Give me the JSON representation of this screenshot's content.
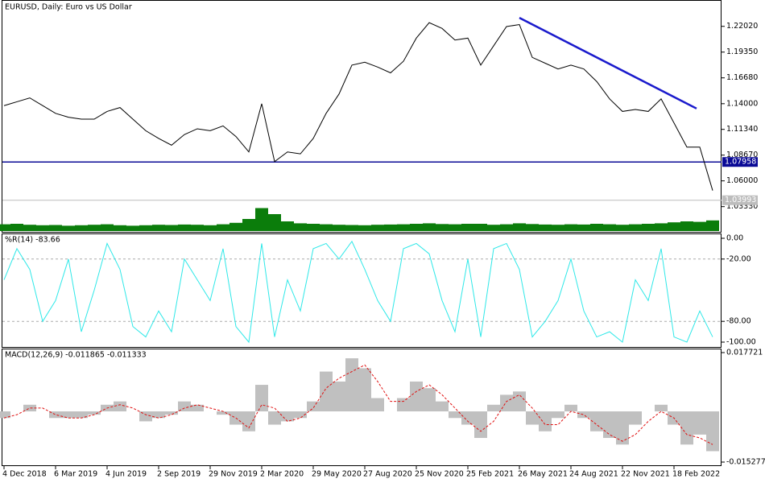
{
  "chart_data": [
    {
      "type": "line",
      "title": "EURUSD, Daily: Euro vs US Dollar",
      "color": "#000000",
      "values": [
        1.138,
        1.142,
        1.146,
        1.138,
        1.13,
        1.126,
        1.124,
        1.124,
        1.132,
        1.136,
        1.124,
        1.112,
        1.104,
        1.097,
        1.108,
        1.114,
        1.112,
        1.117,
        1.106,
        1.09,
        1.14,
        1.08,
        1.09,
        1.088,
        1.104,
        1.13,
        1.15,
        1.18,
        1.183,
        1.178,
        1.172,
        1.184,
        1.208,
        1.224,
        1.218,
        1.206,
        1.208,
        1.18,
        1.2,
        1.22,
        1.222,
        1.188,
        1.182,
        1.176,
        1.18,
        1.176,
        1.163,
        1.145,
        1.132,
        1.134,
        1.132,
        1.145,
        1.12,
        1.095,
        1.095,
        1.05
      ],
      "ylim": [
        1.008,
        1.245
      ],
      "yticks": [
        {
          "value": 1.0333,
          "label": "1.03330"
        },
        {
          "value": 1.06,
          "label": "1.06000"
        },
        {
          "value": 1.0867,
          "label": "1.08670"
        },
        {
          "value": 1.1134,
          "label": "1.11340"
        },
        {
          "value": 1.14,
          "label": "1.14000"
        },
        {
          "value": 1.1668,
          "label": "1.16680"
        },
        {
          "value": 1.1935,
          "label": "1.19350"
        },
        {
          "value": 1.2202,
          "label": "1.22020"
        }
      ],
      "hlines": [
        {
          "value": 1.07958,
          "color": "#0a0a96"
        },
        {
          "value": 1.03993,
          "color": "#bdbdbd"
        }
      ],
      "trendline": {
        "values": [
          1.229,
          1.135
        ],
        "color": "#1a1acc"
      }
    },
    {
      "type": "bar",
      "color": "#0b7d0b",
      "ylim": [
        0,
        100
      ],
      "values": [
        28,
        30,
        26,
        24,
        25,
        22,
        24,
        26,
        28,
        24,
        22,
        24,
        26,
        25,
        27,
        26,
        24,
        28,
        34,
        50,
        95,
        70,
        40,
        32,
        30,
        28,
        26,
        25,
        24,
        26,
        27,
        28,
        30,
        32,
        29,
        28,
        30,
        30,
        26,
        28,
        32,
        29,
        27,
        26,
        28,
        27,
        30,
        28,
        26,
        28,
        30,
        32,
        36,
        40,
        38,
        44
      ]
    },
    {
      "type": "line",
      "title": "%R(14) -83.66",
      "color": "#2ee8e8",
      "ylim": [
        -100,
        0
      ],
      "yticks": [
        {
          "value": 0,
          "label": "0.00"
        },
        {
          "value": -20,
          "label": "-20.00"
        },
        {
          "value": -80,
          "label": "-80.00"
        },
        {
          "value": -100,
          "label": "-100.00"
        }
      ],
      "values": [
        -40,
        -10,
        -30,
        -80,
        -60,
        -20,
        -90,
        -50,
        -5,
        -30,
        -85,
        -95,
        -70,
        -90,
        -20,
        -40,
        -60,
        -10,
        -85,
        -100,
        -5,
        -95,
        -40,
        -70,
        -10,
        -5,
        -20,
        -3,
        -30,
        -60,
        -80,
        -10,
        -5,
        -15,
        -60,
        -90,
        -20,
        -95,
        -10,
        -5,
        -30,
        -95,
        -80,
        -60,
        -20,
        -70,
        -95,
        -90,
        -100,
        -40,
        -60,
        -10,
        -95,
        -100,
        -70,
        -95
      ]
    },
    {
      "type": "macd",
      "title": "MACD(12,26,9) -0.011865 -0.011333",
      "ylim": [
        -0.015277,
        0.017721
      ],
      "yticks": [
        0.017721,
        -0.015277
      ],
      "categories": [
        "4 Dec 2018",
        null,
        null,
        null,
        "6 Mar 2019",
        null,
        null,
        null,
        "4 Jun 2019",
        null,
        null,
        null,
        "2 Sep 2019",
        null,
        null,
        null,
        "29 Nov 2019",
        null,
        null,
        null,
        "2 Mar 2020",
        null,
        null,
        null,
        "29 May 2020",
        null,
        null,
        null,
        "27 Aug 2020",
        null,
        null,
        null,
        "25 Nov 2020",
        null,
        null,
        null,
        "25 Feb 2021",
        null,
        null,
        null,
        "26 May 2021",
        null,
        null,
        null,
        "24 Aug 2021",
        null,
        null,
        null,
        "22 Nov 2021",
        null,
        null,
        null,
        "18 Feb 2022",
        null,
        null,
        null
      ],
      "series": [
        {
          "type": "bar",
          "color": "#c0c0c0",
          "values": [
            -0.002,
            0,
            0.002,
            0,
            -0.002,
            -0.002,
            -0.002,
            -0.001,
            0.002,
            0.003,
            0,
            -0.003,
            -0.002,
            -0.001,
            0.003,
            0.002,
            0,
            -0.001,
            -0.004,
            -0.006,
            0.008,
            -0.004,
            -0.003,
            -0.002,
            0.003,
            0.012,
            0.009,
            0.016,
            0.013,
            0.004,
            0,
            0.004,
            0.009,
            0.007,
            0.003,
            -0.002,
            -0.004,
            -0.008,
            0.002,
            0.005,
            0.006,
            -0.004,
            -0.006,
            -0.002,
            0.002,
            -0.002,
            -0.006,
            -0.008,
            -0.01,
            -0.004,
            0,
            0.002,
            -0.004,
            -0.01,
            -0.007,
            -0.012
          ]
        },
        {
          "type": "line",
          "color": "#e01010",
          "dash": true,
          "values": [
            -0.002,
            -0.001,
            0.001,
            0.001,
            -0.001,
            -0.002,
            -0.002,
            -0.001,
            0.001,
            0.002,
            0.001,
            -0.001,
            -0.002,
            -0.001,
            0.001,
            0.002,
            0.001,
            0,
            -0.002,
            -0.005,
            0.002,
            0.001,
            -0.003,
            -0.002,
            0.001,
            0.007,
            0.01,
            0.012,
            0.014,
            0.009,
            0.003,
            0.003,
            0.006,
            0.008,
            0.005,
            0.001,
            -0.003,
            -0.006,
            -0.003,
            0.003,
            0.005,
            0.001,
            -0.004,
            -0.004,
            0,
            -0.001,
            -0.004,
            -0.007,
            -0.009,
            -0.007,
            -0.003,
            0,
            -0.002,
            -0.007,
            -0.008,
            -0.01
          ]
        }
      ]
    }
  ]
}
